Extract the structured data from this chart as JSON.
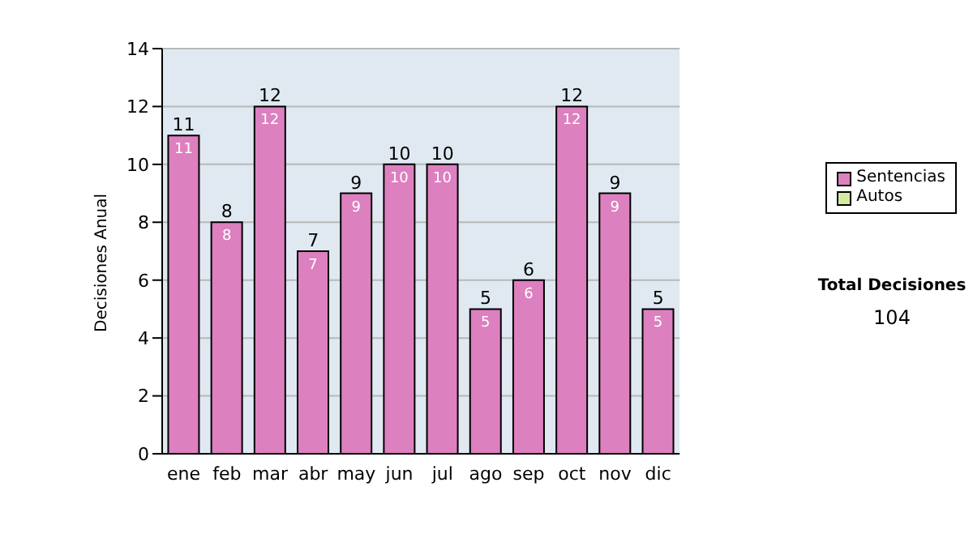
{
  "chart_data": {
    "type": "bar",
    "ylabel": "Decisiones Anual",
    "categories": [
      "ene",
      "feb",
      "mar",
      "abr",
      "may",
      "jun",
      "jul",
      "ago",
      "sep",
      "oct",
      "nov",
      "dic"
    ],
    "series": [
      {
        "name": "Sentencias",
        "color": "#dd80bf",
        "values": [
          11,
          8,
          12,
          7,
          9,
          10,
          10,
          5,
          6,
          12,
          9,
          5
        ],
        "value_labels": [
          "11",
          "8",
          "12",
          "7",
          "9",
          "10",
          "10",
          "5",
          "6",
          "12",
          "9",
          "5"
        ]
      },
      {
        "name": "Autos",
        "color": "#d4eaa0",
        "values": [
          0,
          0,
          0,
          0,
          0,
          0,
          0,
          0,
          0,
          0,
          0,
          0
        ]
      }
    ],
    "stacked": true,
    "totals": [
      "11",
      "8",
      "12",
      "7",
      "9",
      "10",
      "10",
      "5",
      "6",
      "12",
      "9",
      "5"
    ],
    "ylim": [
      0,
      14
    ],
    "yticks": [
      0,
      2,
      4,
      6,
      8,
      10,
      12,
      14
    ],
    "grid": "y",
    "legend": "right",
    "annotations": [
      "Total Decisiones",
      "104"
    ]
  }
}
